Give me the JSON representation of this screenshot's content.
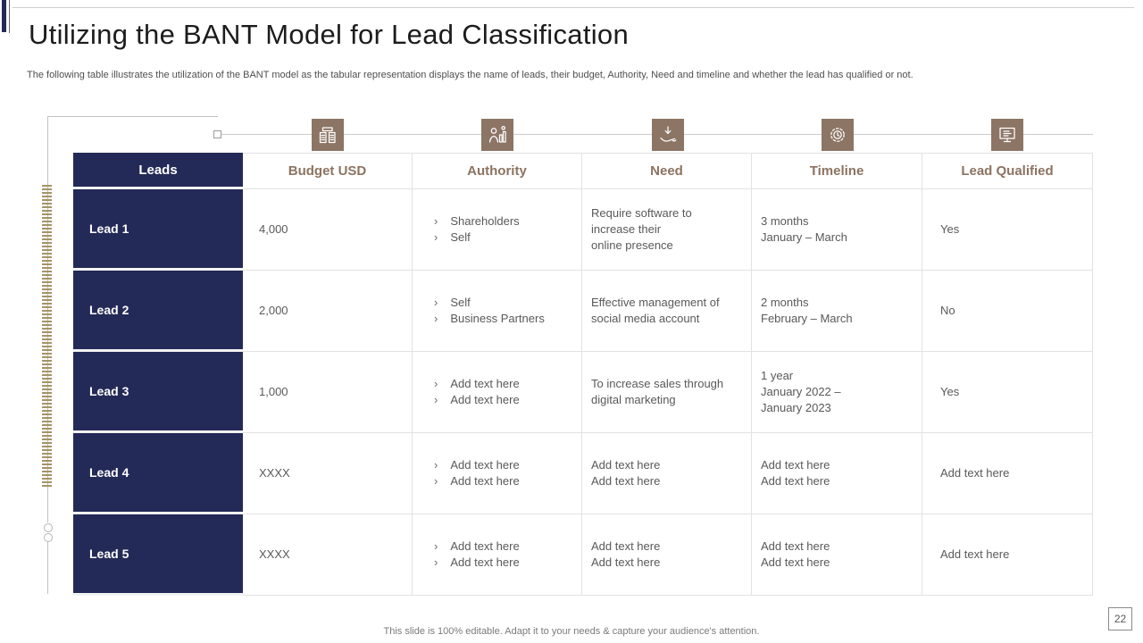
{
  "slide": {
    "title": "Utilizing the BANT Model for Lead Classification",
    "subtitle": "The following table illustrates the utilization of the BANT model as the tabular representation displays the name of leads, their budget, Authority,  Need and timeline and whether the lead has qualified or not.",
    "footer": "This slide is 100% editable. Adapt it to your needs & capture your audience's attention.",
    "page_number": "22"
  },
  "colors": {
    "navy": "#242a57",
    "brown_accent": "#8c7565",
    "header_text_brown": "#8c7361",
    "tape_tan": "#a59467",
    "body_text": "#595959",
    "grid_border": "#e2e2e2"
  },
  "bullet_char": "›",
  "table": {
    "columns": [
      {
        "label": "Leads",
        "icon": null
      },
      {
        "label": "Budget USD",
        "icon": "money-stacks-icon"
      },
      {
        "label": "Authority",
        "icon": "person-chart-icon"
      },
      {
        "label": "Need",
        "icon": "hand-arrow-icon"
      },
      {
        "label": "Timeline",
        "icon": "gear-clock-icon"
      },
      {
        "label": "Lead Qualified",
        "icon": "monitor-document-icon"
      }
    ],
    "rows": [
      {
        "lead": "Lead 1",
        "budget": "4,000",
        "authority": [
          "Shareholders",
          "Self"
        ],
        "need": [
          "Require software to",
          "increase their",
          "online presence"
        ],
        "timeline": [
          "3 months",
          "January – March"
        ],
        "qualified": "Yes"
      },
      {
        "lead": "Lead 2",
        "budget": "2,000",
        "authority": [
          "Self",
          "Business Partners"
        ],
        "need": [
          "Effective management of",
          "social media account"
        ],
        "timeline": [
          "2 months",
          "February – March"
        ],
        "qualified": "No"
      },
      {
        "lead": "Lead 3",
        "budget": "1,000",
        "authority": [
          "Add text here",
          "Add text here"
        ],
        "need": [
          "To increase sales through",
          "digital marketing"
        ],
        "timeline": [
          "1 year",
          "January 2022 –",
          "January 2023"
        ],
        "qualified": "Yes"
      },
      {
        "lead": "Lead 4",
        "budget": "XXXX",
        "authority": [
          "Add text here",
          "Add text here"
        ],
        "need": [
          "Add text here",
          "Add text here"
        ],
        "timeline": [
          "Add text here",
          "Add text here"
        ],
        "qualified": "Add text here"
      },
      {
        "lead": "Lead 5",
        "budget": "XXXX",
        "authority": [
          "Add text here",
          "Add text here"
        ],
        "need": [
          "Add text here",
          "Add text here"
        ],
        "timeline": [
          "Add text here",
          "Add text here"
        ],
        "qualified": "Add text here"
      }
    ]
  }
}
